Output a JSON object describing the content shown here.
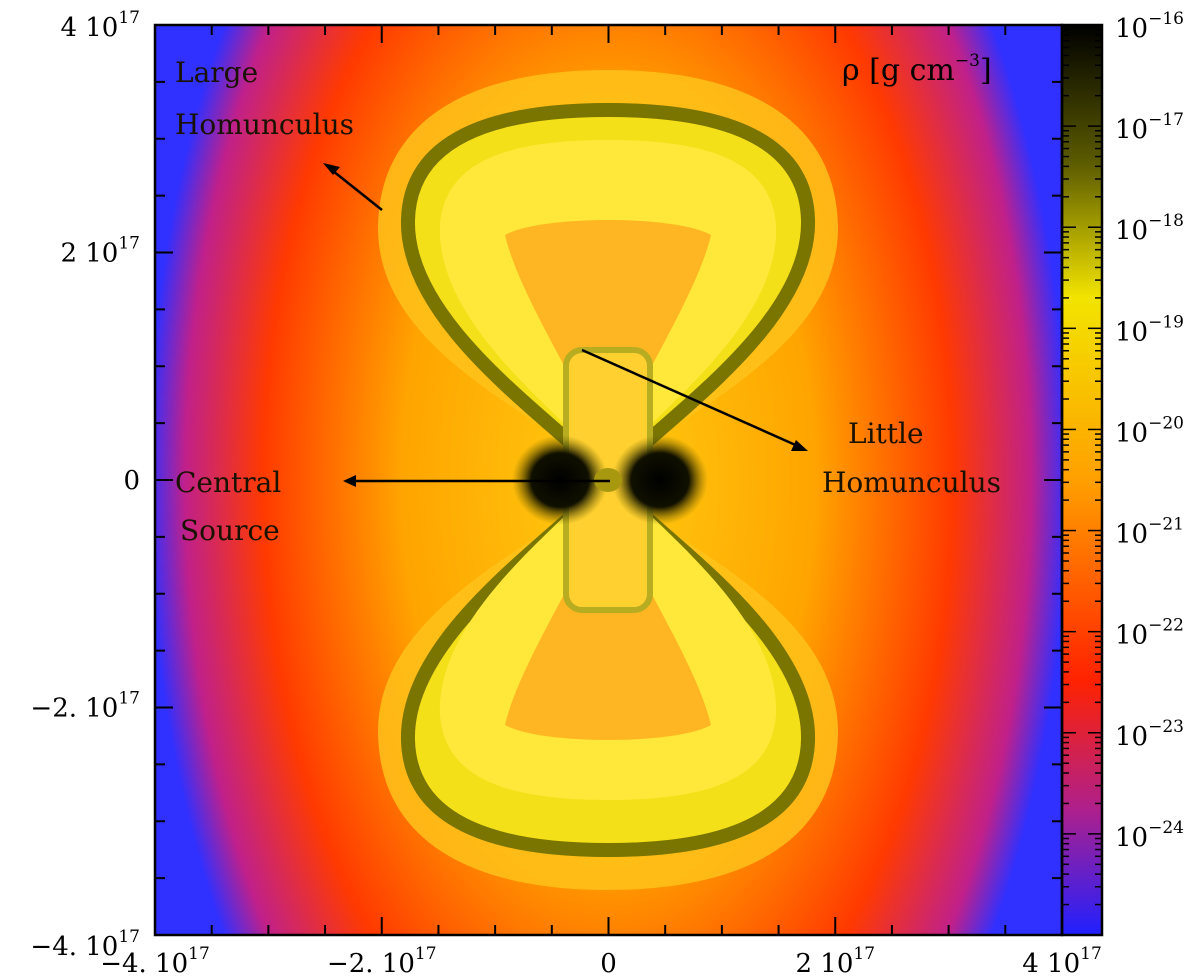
{
  "chart_data": {
    "type": "heatmap",
    "quantity_label": "ρ [g cm",
    "quantity_exponent": "−3",
    "quantity_close": "]",
    "x_ticks": [
      {
        "value": -4e+17,
        "mant": "−4.",
        "exp": "17"
      },
      {
        "value": -2e+17,
        "mant": "−2.",
        "exp": "17"
      },
      {
        "value": 0,
        "mant": "0",
        "exp": ""
      },
      {
        "value": 2e+17,
        "mant": "2",
        "exp": "17"
      },
      {
        "value": 4e+17,
        "mant": "4",
        "exp": "17"
      }
    ],
    "y_ticks": [
      {
        "value": 4e+17,
        "mant": "4",
        "exp": "17"
      },
      {
        "value": 2e+17,
        "mant": "2",
        "exp": "17"
      },
      {
        "value": 0,
        "mant": "0",
        "exp": ""
      },
      {
        "value": -2e+17,
        "mant": "−2.",
        "exp": "17"
      },
      {
        "value": -4e+17,
        "mant": "−4.",
        "exp": "17"
      }
    ],
    "tick_base": "10",
    "xlim": [
      -4e+17,
      4e+17
    ],
    "ylim": [
      -4e+17,
      4e+17
    ],
    "colorbar": {
      "scale": "log",
      "range": [
        1e-25,
        1e-16
      ],
      "ticks": [
        {
          "value": 1e-16,
          "exp": "−16"
        },
        {
          "value": 1e-17,
          "exp": "−17"
        },
        {
          "value": 1e-18,
          "exp": "−18"
        },
        {
          "value": 1e-19,
          "exp": "−19"
        },
        {
          "value": 1e-20,
          "exp": "−20"
        },
        {
          "value": 1e-21,
          "exp": "−21"
        },
        {
          "value": 1e-22,
          "exp": "−22"
        },
        {
          "value": 1e-23,
          "exp": "−23"
        },
        {
          "value": 1e-24,
          "exp": "−24"
        }
      ],
      "colors": [
        "#000000",
        "#5a5a00",
        "#f2e400",
        "#ffa000",
        "#ff2200",
        "#3a2aff"
      ]
    },
    "annotations": [
      {
        "lines": [
          "Large",
          "Homunculus"
        ]
      },
      {
        "lines": [
          "Little",
          "Homunculus"
        ]
      },
      {
        "lines": [
          "Central",
          "Source"
        ]
      }
    ]
  }
}
